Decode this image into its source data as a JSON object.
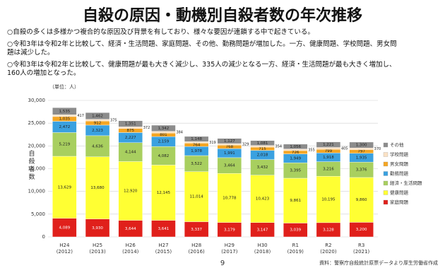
{
  "header": {
    "title": "自殺の原因・動機別自殺者数の年次推移",
    "bullets": [
      "○自殺の多くは多様かつ複合的な原因及び背景を有しており、様々な要因が連鎖する中で起きている。",
      "○令和3年は令和2年と比較して、経済・生活問題、家庭問題、その他、勤務問題が増加した。一方、健康問題、学校問題、男女問題は減少した。",
      "○令和3年は令和2年と比較して、健康問題が最も大きく減少し、335人の減少となる一方、経済・生活問題が最も大きく増加し、160人の増加となった。"
    ]
  },
  "chart_data": {
    "type": "stacked_bar",
    "unit": "（単位：人）",
    "y_label": "自殺者数",
    "categories": [
      "H24",
      "H25",
      "H26",
      "H27",
      "H28",
      "H29",
      "H30",
      "R1",
      "R2",
      "R3"
    ],
    "category_years": [
      "(2012)",
      "(2013)",
      "(2014)",
      "(2015)",
      "(2016)",
      "(2017)",
      "(2018)",
      "(2019)",
      "(2020)",
      "(2021)"
    ],
    "ylim": [
      0,
      30000
    ],
    "yticks": [
      {
        "value": 0,
        "label": "0"
      },
      {
        "value": 5000,
        "label": "5,000"
      },
      {
        "value": 10000,
        "label": "10,000"
      },
      {
        "value": 15000,
        "label": "15,000"
      },
      {
        "value": 20000,
        "label": "20,000"
      },
      {
        "value": 25000,
        "label": "25,000"
      },
      {
        "value": 30000,
        "label": "30,000"
      }
    ],
    "grid": true,
    "series": [
      {
        "name": "家庭問題",
        "color": "#e0201b",
        "values": [
          4089,
          3930,
          3644,
          3641,
          3337,
          3179,
          3147,
          3039,
          3128,
          3200
        ],
        "value_labels": [
          "4,089",
          "3,930",
          "3,644",
          "3,641",
          "3,337",
          "3,179",
          "3,147",
          "3,039",
          "3,128",
          "3,200"
        ]
      },
      {
        "name": "健康問題",
        "color": "#ffff33",
        "values": [
          13629,
          13680,
          12920,
          12145,
          11014,
          10778,
          10423,
          9861,
          10195,
          9860
        ],
        "value_labels": [
          "13,629",
          "13,680",
          "12,920",
          "12,145",
          "11,014",
          "10,778",
          "10,423",
          "9,861",
          "10,195",
          "9,860"
        ]
      },
      {
        "name": "経済・生活問題",
        "color": "#a8cf5f",
        "values": [
          5219,
          4636,
          4144,
          4082,
          3522,
          3464,
          3432,
          3395,
          3216,
          3376
        ],
        "value_labels": [
          "5,219",
          "4,636",
          "4,144",
          "4,082",
          "3,522",
          "3,464",
          "3,432",
          "3,395",
          "3,216",
          "3,376"
        ]
      },
      {
        "name": "勤務問題",
        "color": "#3aa1e0",
        "values": [
          2472,
          2323,
          2227,
          2159,
          1978,
          1991,
          2018,
          1949,
          1918,
          1935
        ],
        "value_labels": [
          "2,472",
          "2,323",
          "2,227",
          "2,159",
          "1,978",
          "1,991",
          "2,018",
          "1,949",
          "1,918",
          "1,935"
        ]
      },
      {
        "name": "男女問題",
        "color": "#f5a623",
        "values": [
          1035,
          912,
          875,
          801,
          764,
          768,
          715,
          726,
          799,
          797
        ],
        "value_labels": [
          "1,035",
          "912",
          "875",
          "801",
          "764",
          "768",
          "715",
          "726",
          "799",
          "797"
        ]
      },
      {
        "name": "学校問題",
        "color": "#fbe2c4",
        "values": [
          417,
          375,
          372,
          384,
          319,
          329,
          354,
          355,
          405,
          370
        ],
        "value_labels": [
          "417",
          "375",
          "372",
          "384",
          "319",
          "329",
          "354",
          "355",
          "405",
          "370"
        ]
      },
      {
        "name": "その他",
        "color": "#8c8c8c",
        "values": [
          1535,
          1462,
          1351,
          1342,
          1148,
          1127,
          1081,
          1056,
          1221,
          1300
        ],
        "value_labels": [
          "1,535",
          "1,462",
          "1,351",
          "1,342",
          "1,148",
          "1,127",
          "1,081",
          "1,056",
          "1,221",
          "1,300"
        ]
      }
    ]
  },
  "footer": {
    "page": "9",
    "source": "資料：警察庁自殺統計原票データより厚生労働省作成"
  }
}
